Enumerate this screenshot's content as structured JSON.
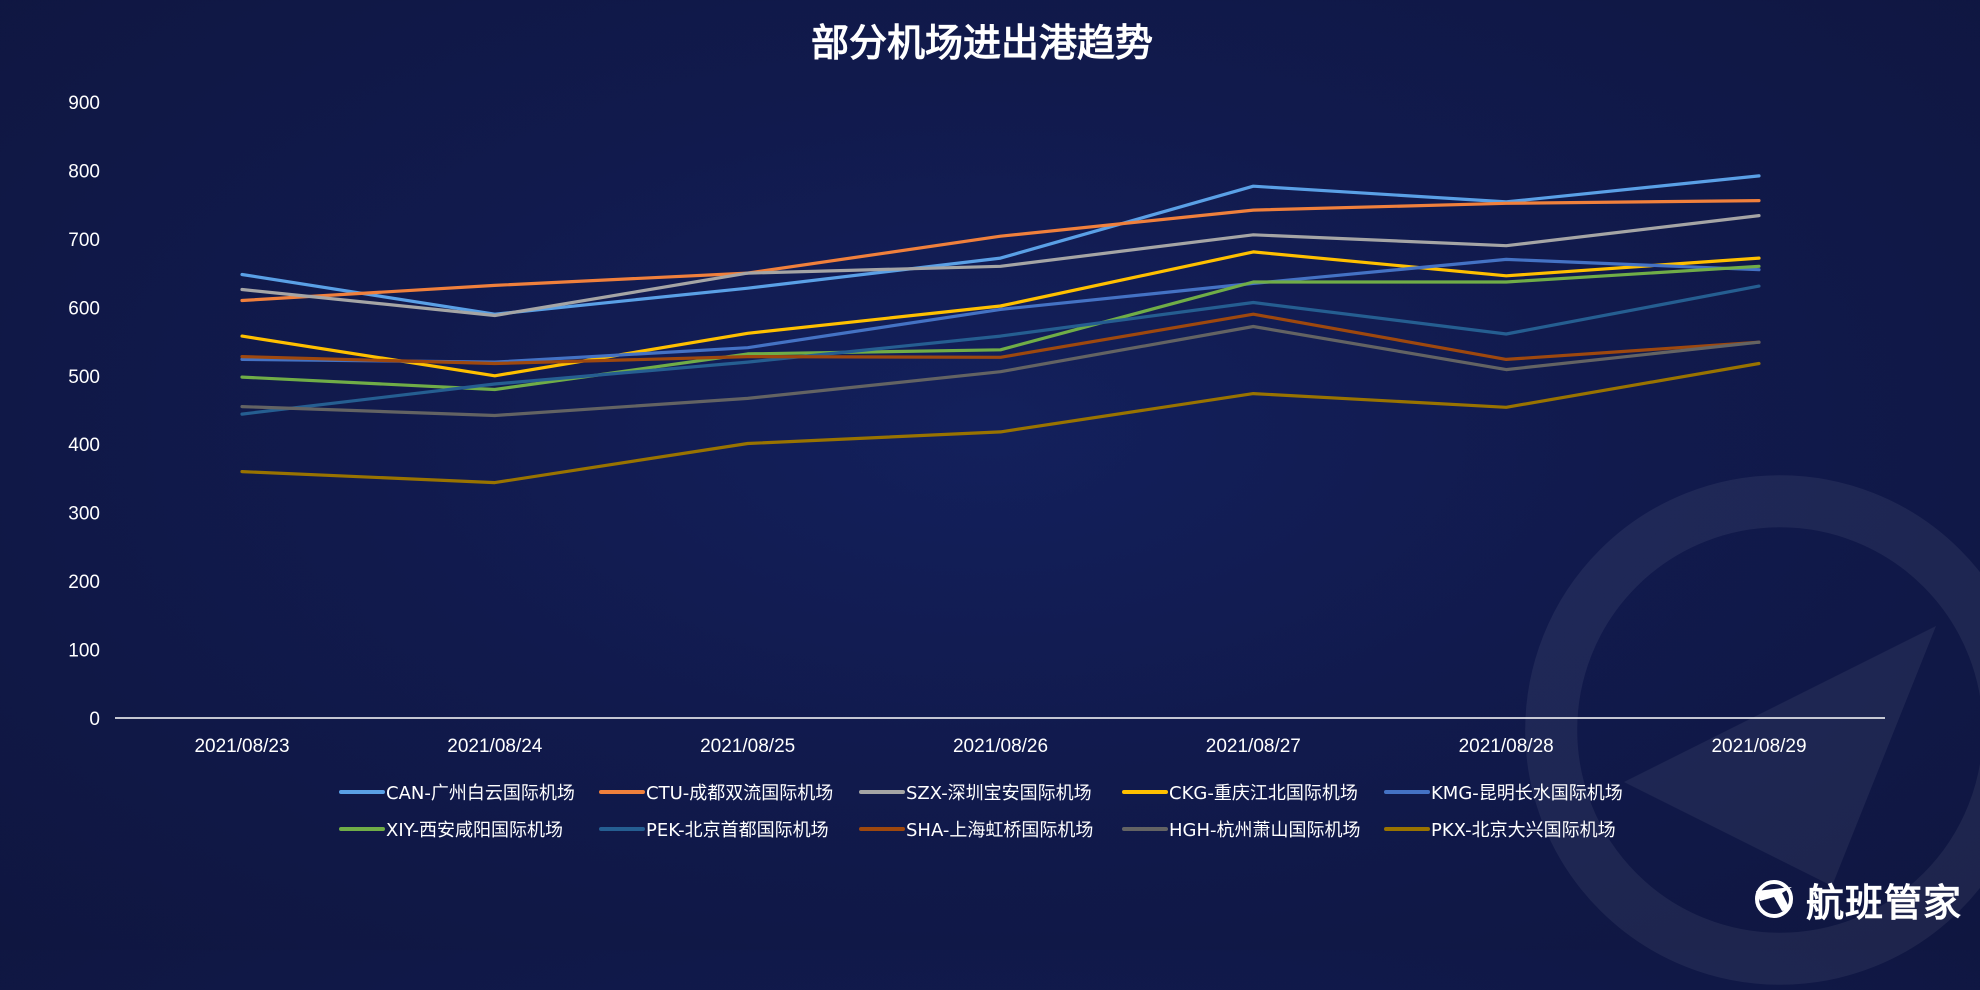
{
  "chart_data": {
    "type": "line",
    "title": "部分机场进出港趋势",
    "categories": [
      "2021/08/23",
      "2021/08/24",
      "2021/08/25",
      "2021/08/26",
      "2021/08/27",
      "2021/08/28",
      "2021/08/29"
    ],
    "ylim": [
      0,
      900
    ],
    "yticks": [
      0,
      100,
      200,
      300,
      400,
      500,
      600,
      700,
      800,
      900
    ],
    "grid": false,
    "legend_position": "bottom",
    "series": [
      {
        "name": "CAN-广州白云国际机场",
        "color": "#5aa0e6",
        "values": [
          648,
          590,
          628,
          672,
          777,
          754,
          792
        ]
      },
      {
        "name": "CTU-成都双流国际机场",
        "color": "#f0803c",
        "values": [
          610,
          632,
          650,
          704,
          742,
          752,
          756
        ]
      },
      {
        "name": "SZX-深圳宝安国际机场",
        "color": "#a5a5a5",
        "values": [
          626,
          588,
          650,
          660,
          706,
          690,
          734
        ]
      },
      {
        "name": "CKG-重庆江北国际机场",
        "color": "#ffc000",
        "values": [
          558,
          500,
          562,
          602,
          681,
          646,
          672
        ]
      },
      {
        "name": "KMG-昆明长水国际机场",
        "color": "#4472c4",
        "values": [
          524,
          520,
          541,
          597,
          635,
          670,
          655
        ]
      },
      {
        "name": "XIY-西安咸阳国际机场",
        "color": "#70ad47",
        "values": [
          498,
          480,
          532,
          538,
          637,
          637,
          660
        ]
      },
      {
        "name": "PEK-北京首都国际机场",
        "color": "#255e91",
        "values": [
          444,
          488,
          520,
          558,
          607,
          561,
          631
        ]
      },
      {
        "name": "SHA-上海虹桥国际机场",
        "color": "#9e480e",
        "values": [
          528,
          518,
          528,
          527,
          590,
          524,
          549
        ]
      },
      {
        "name": "HGH-杭州萧山国际机场",
        "color": "#636363",
        "values": [
          455,
          442,
          467,
          506,
          572,
          509,
          549
        ]
      },
      {
        "name": "PKX-北京大兴国际机场",
        "color": "#997300",
        "values": [
          360,
          344,
          401,
          418,
          474,
          454,
          518
        ]
      }
    ]
  },
  "brand": {
    "name": "航班管家",
    "logo_icon": "airplane-logo-icon"
  }
}
